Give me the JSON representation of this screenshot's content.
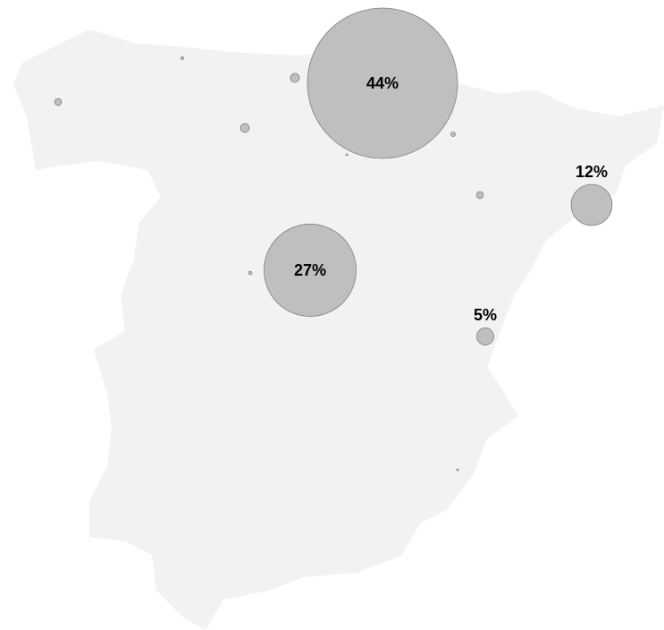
{
  "chart_data": {
    "type": "bubble-map",
    "color": "#bfbfbf",
    "bubbles": [
      {
        "value": 44,
        "label": "44%"
      },
      {
        "value": 27,
        "label": "27%"
      },
      {
        "value": 12,
        "label": "12%"
      },
      {
        "value": 5,
        "label": "5%"
      },
      {
        "value": 2
      },
      {
        "value": 0.8
      },
      {
        "value": 2.6
      },
      {
        "value": 2.6
      },
      {
        "value": 1.3
      },
      {
        "value": 0.5
      },
      {
        "value": 2
      },
      {
        "value": 1
      },
      {
        "value": 0.5
      }
    ]
  }
}
